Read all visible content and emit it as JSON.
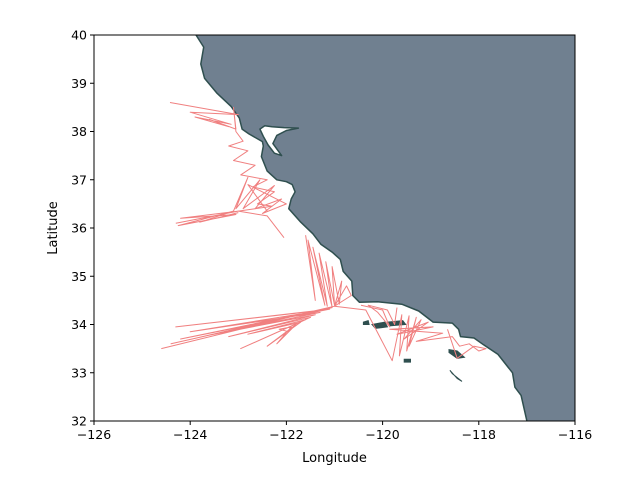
{
  "chart_data": {
    "type": "map",
    "xlabel": "Longitude",
    "ylabel": "Latitude",
    "xlim": [
      -126,
      -116
    ],
    "ylim": [
      32,
      40
    ],
    "x_ticks": [
      -126,
      -124,
      -122,
      -120,
      -118,
      -116
    ],
    "y_ticks": [
      32,
      33,
      34,
      35,
      36,
      37,
      38,
      39,
      40
    ],
    "x_tick_labels": [
      "−126",
      "−124",
      "−122",
      "−120",
      "−118",
      "−116"
    ],
    "y_tick_labels": [
      "32",
      "33",
      "34",
      "35",
      "36",
      "37",
      "38",
      "39",
      "40"
    ],
    "colors": {
      "land": "#708090",
      "coastline": "#2f4f4f",
      "tracks": "#f08080",
      "ocean": "#ffffff"
    },
    "coastline": [
      [
        -123.88,
        40.0
      ],
      [
        -123.72,
        39.75
      ],
      [
        -123.78,
        39.4
      ],
      [
        -123.7,
        39.1
      ],
      [
        -123.45,
        38.8
      ],
      [
        -123.15,
        38.52
      ],
      [
        -122.98,
        38.28
      ],
      [
        -122.92,
        38.05
      ],
      [
        -122.78,
        37.95
      ],
      [
        -122.5,
        37.79
      ],
      [
        -122.48,
        37.7
      ],
      [
        -122.52,
        37.48
      ],
      [
        -122.4,
        37.18
      ],
      [
        -122.2,
        37.0
      ],
      [
        -122.0,
        36.96
      ],
      [
        -121.88,
        36.9
      ],
      [
        -121.82,
        36.75
      ],
      [
        -121.9,
        36.6
      ],
      [
        -121.95,
        36.4
      ],
      [
        -121.7,
        36.12
      ],
      [
        -121.45,
        35.88
      ],
      [
        -121.28,
        35.66
      ],
      [
        -121.05,
        35.5
      ],
      [
        -120.88,
        35.35
      ],
      [
        -120.82,
        35.1
      ],
      [
        -120.64,
        34.9
      ],
      [
        -120.62,
        34.6
      ],
      [
        -120.48,
        34.46
      ],
      [
        -120.1,
        34.47
      ],
      [
        -119.6,
        34.42
      ],
      [
        -119.25,
        34.28
      ],
      [
        -118.95,
        34.05
      ],
      [
        -118.55,
        34.03
      ],
      [
        -118.42,
        33.9
      ],
      [
        -118.38,
        33.75
      ],
      [
        -118.1,
        33.72
      ],
      [
        -117.9,
        33.58
      ],
      [
        -117.6,
        33.38
      ],
      [
        -117.3,
        33.0
      ],
      [
        -117.25,
        32.7
      ],
      [
        -117.12,
        32.53
      ],
      [
        -117.0,
        32.0
      ]
    ],
    "bay": [
      [
        -122.48,
        37.9
      ],
      [
        -122.55,
        38.05
      ],
      [
        -122.45,
        38.12
      ],
      [
        -122.3,
        38.1
      ],
      [
        -122.05,
        38.08
      ],
      [
        -121.75,
        38.07
      ],
      [
        -122.0,
        38.02
      ],
      [
        -122.2,
        37.92
      ],
      [
        -122.28,
        37.75
      ],
      [
        -122.1,
        37.5
      ],
      [
        -122.25,
        37.55
      ],
      [
        -122.38,
        37.72
      ],
      [
        -122.48,
        37.9
      ]
    ],
    "islands": [
      [
        [
          -120.4,
          34.05
        ],
        [
          -120.3,
          34.08
        ],
        [
          -120.28,
          34.0
        ],
        [
          -120.4,
          34.0
        ]
      ],
      [
        [
          -120.22,
          34.0
        ],
        [
          -119.95,
          34.05
        ],
        [
          -119.9,
          33.95
        ],
        [
          -120.15,
          33.92
        ]
      ],
      [
        [
          -119.9,
          34.05
        ],
        [
          -119.58,
          34.08
        ],
        [
          -119.52,
          34.0
        ],
        [
          -119.85,
          33.97
        ]
      ],
      [
        [
          -119.55,
          33.28
        ],
        [
          -119.42,
          33.28
        ],
        [
          -119.42,
          33.22
        ],
        [
          -119.55,
          33.22
        ]
      ],
      [
        [
          -118.62,
          33.48
        ],
        [
          -118.45,
          33.45
        ],
        [
          -118.3,
          33.32
        ],
        [
          -118.45,
          33.3
        ],
        [
          -118.62,
          33.42
        ]
      ],
      [
        [
          -118.6,
          33.05
        ],
        [
          -118.45,
          32.88
        ],
        [
          -118.35,
          32.82
        ],
        [
          -118.55,
          32.98
        ]
      ]
    ],
    "tracks": [
      [
        [
          -124.42,
          38.6
        ],
        [
          -123.0,
          38.35
        ],
        [
          -124.0,
          38.4
        ],
        [
          -123.15,
          38.15
        ],
        [
          -123.9,
          38.3
        ],
        [
          -123.2,
          38.1
        ],
        [
          -123.6,
          38.25
        ],
        [
          -123.05,
          38.05
        ],
        [
          -123.1,
          38.5
        ],
        [
          -123.05,
          38.0
        ],
        [
          -122.9,
          37.8
        ],
        [
          -123.2,
          37.7
        ],
        [
          -122.8,
          37.6
        ],
        [
          -123.1,
          37.4
        ],
        [
          -122.65,
          37.3
        ],
        [
          -122.95,
          37.1
        ],
        [
          -122.4,
          37.0
        ],
        [
          -122.7,
          36.85
        ],
        [
          -122.25,
          36.75
        ],
        [
          -122.6,
          36.5
        ],
        [
          -122.3,
          36.45
        ],
        [
          -123.0,
          36.35
        ],
        [
          -122.4,
          36.25
        ],
        [
          -122.05,
          35.8
        ]
      ],
      [
        [
          -123.1,
          36.35
        ],
        [
          -122.8,
          37.05
        ],
        [
          -123.05,
          36.4
        ],
        [
          -122.55,
          37.0
        ],
        [
          -122.9,
          36.4
        ],
        [
          -122.25,
          36.88
        ],
        [
          -122.65,
          36.4
        ],
        [
          -122.1,
          36.6
        ],
        [
          -122.5,
          36.3
        ],
        [
          -122.0,
          36.5
        ],
        [
          -122.8,
          36.9
        ],
        [
          -122.4,
          36.35
        ]
      ],
      [
        [
          -124.3,
          36.1
        ],
        [
          -123.0,
          36.35
        ],
        [
          -124.2,
          36.2
        ],
        [
          -123.05,
          36.28
        ],
        [
          -124.25,
          36.05
        ],
        [
          -123.1,
          36.35
        ],
        [
          -123.8,
          36.12
        ],
        [
          -123.0,
          36.32
        ]
      ],
      [
        [
          -121.6,
          35.85
        ],
        [
          -121.4,
          34.5
        ],
        [
          -121.55,
          35.75
        ],
        [
          -121.2,
          34.4
        ],
        [
          -121.45,
          35.6
        ],
        [
          -121.15,
          34.38
        ],
        [
          -121.32,
          35.48
        ],
        [
          -121.05,
          34.36
        ],
        [
          -121.18,
          35.3
        ],
        [
          -121.0,
          34.4
        ],
        [
          -121.05,
          35.2
        ],
        [
          -120.9,
          34.42
        ],
        [
          -120.85,
          34.9
        ],
        [
          -121.0,
          34.38
        ],
        [
          -120.75,
          34.8
        ],
        [
          -120.65,
          34.6
        ],
        [
          -121.0,
          34.38
        ]
      ],
      [
        [
          -124.6,
          33.5
        ],
        [
          -121.0,
          34.38
        ],
        [
          -124.4,
          33.6
        ],
        [
          -121.05,
          34.35
        ],
        [
          -124.2,
          33.7
        ],
        [
          -121.1,
          34.32
        ],
        [
          -124.3,
          33.95
        ],
        [
          -121.2,
          34.3
        ],
        [
          -124.0,
          33.85
        ],
        [
          -121.3,
          34.25
        ],
        [
          -123.6,
          33.78
        ],
        [
          -121.4,
          34.2
        ],
        [
          -123.2,
          33.75
        ],
        [
          -121.5,
          34.15
        ],
        [
          -122.95,
          33.5
        ],
        [
          -121.6,
          34.1
        ],
        [
          -122.8,
          33.8
        ],
        [
          -121.7,
          34.05
        ],
        [
          -122.4,
          33.55
        ],
        [
          -121.8,
          34.0
        ],
        [
          -122.2,
          33.6
        ],
        [
          -121.9,
          33.95
        ],
        [
          -122.15,
          33.9
        ],
        [
          -121.95,
          33.85
        ]
      ],
      [
        [
          -121.0,
          34.38
        ],
        [
          -120.35,
          34.3
        ],
        [
          -119.8,
          33.25
        ],
        [
          -119.6,
          34.2
        ],
        [
          -119.65,
          33.35
        ],
        [
          -119.45,
          34.18
        ],
        [
          -119.5,
          33.45
        ],
        [
          -119.3,
          34.15
        ],
        [
          -119.45,
          33.55
        ],
        [
          -119.2,
          34.1
        ],
        [
          -119.55,
          33.7
        ],
        [
          -119.05,
          34.05
        ],
        [
          -119.7,
          33.8
        ],
        [
          -118.95,
          33.95
        ],
        [
          -119.85,
          33.9
        ],
        [
          -118.75,
          33.82
        ],
        [
          -119.3,
          33.65
        ],
        [
          -118.55,
          33.75
        ],
        [
          -118.4,
          33.55
        ],
        [
          -118.2,
          33.6
        ],
        [
          -118.0,
          33.45
        ],
        [
          -117.85,
          33.5
        ],
        [
          -118.1,
          33.55
        ],
        [
          -118.45,
          33.3
        ],
        [
          -118.65,
          33.9
        ]
      ],
      [
        [
          -120.45,
          34.4
        ],
        [
          -120.0,
          34.3
        ],
        [
          -119.85,
          33.95
        ],
        [
          -120.1,
          34.25
        ],
        [
          -120.3,
          34.4
        ],
        [
          -119.9,
          34.3
        ],
        [
          -119.75,
          34.0
        ],
        [
          -119.7,
          34.35
        ]
      ]
    ]
  }
}
